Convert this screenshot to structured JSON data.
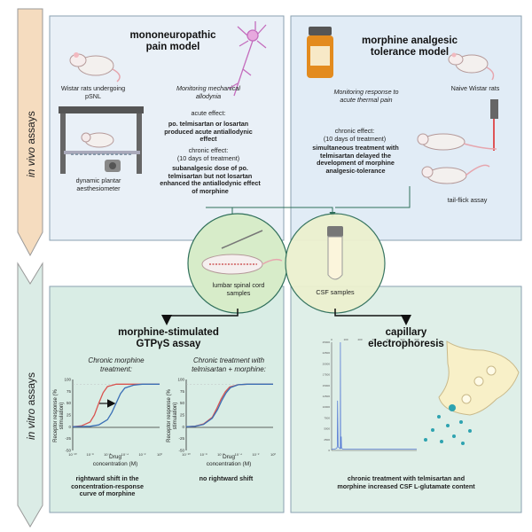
{
  "side": {
    "in_vivo": [
      "in vivo",
      " assays"
    ],
    "in_vitro": [
      "in vitro",
      " assays"
    ]
  },
  "panel_tl": {
    "title": "mononeuropathic\npain model",
    "rats_caption": "Wistar rats undergoing\npSNL",
    "monitoring": "Monitoring mechanical\nallodynia",
    "acute_label": "acute effect:",
    "acute_text": "po. telmisartan or losartan\nproduced acute antiallodynic\neffect",
    "chronic_label": "chronic effect:\n(10 days of treatment)",
    "chronic_text": "subanalgesic dose of po.\ntelmisartan but not losartan\nenhanced the antiallodynic effect\nof morphine",
    "device_caption": "dynamic plantar\naesthesiometer"
  },
  "panel_tr": {
    "title": "morphine analgesic\ntolerance model",
    "rats_caption": "Naive Wistar rats",
    "monitoring": "Monitoring response to\nacute thermal pain",
    "chronic_label": "chronic effect:\n(10 days of treatment)",
    "chronic_text": "simultaneous treatment with\ntelmisartan delayed the\ndevelopment of morphine\nanalgesic-tolerance",
    "assay_caption": "tail-flick assay"
  },
  "samples": {
    "spinal": "lumbar spinal cord\nsamples",
    "csf": "CSF samples"
  },
  "panel_bl": {
    "title": "morphine-stimulated\nGTPγS assay",
    "chart1_title": "Chronic morphine\ntreatment:",
    "chart2_title": "Chronic treatment with\ntelmisartan + morphine:",
    "chart1_result": "rightward shift in the\nconcentration-response\ncurve of morphine",
    "chart2_result": "no rightward shift",
    "ylabel": "Receptor response (%\nstimulation)",
    "xlabel": "Drug\nconcentration (M)"
  },
  "panel_br": {
    "title": "capillary\nelectrophoresis",
    "result": "chronic treatment with telmisartan and\nmorphine increased CSF L-glutamate content"
  },
  "chart_data": [
    {
      "type": "line",
      "title": "Chronic morphine\ntreatment:",
      "xlabel": "Drug\nconcentration (M)",
      "ylabel": "Receptor response (%\nstimulation)",
      "x_ticks": [
        "10⁻¹⁰",
        "10⁻⁸",
        "10⁻⁶",
        "10⁻⁴",
        "10⁻²",
        "10⁰"
      ],
      "y_ticks": [
        "100",
        "75",
        "50",
        "25",
        "0",
        "-25",
        "-50"
      ],
      "ylim": [
        -50,
        100
      ],
      "series": [
        {
          "color": "#d9534f",
          "x": [
            -10,
            -9,
            -8,
            -7.5,
            -7,
            -6.5,
            -6,
            -5,
            -4,
            -3,
            -2,
            0
          ],
          "y": [
            0,
            2,
            10,
            25,
            50,
            72,
            85,
            90,
            90,
            90,
            90,
            90
          ]
        },
        {
          "color": "#3a6fb5",
          "x": [
            -10,
            -8,
            -7,
            -6,
            -5.5,
            -5,
            -4.5,
            -4,
            -3,
            -2,
            0
          ],
          "y": [
            0,
            1,
            4,
            15,
            30,
            50,
            70,
            82,
            88,
            90,
            90
          ]
        }
      ]
    },
    {
      "type": "line",
      "title": "Chronic treatment with\ntelmisartan + morphine:",
      "xlabel": "Drug\nconcentration (M)",
      "ylabel": "Receptor response (%\nstimulation)",
      "x_ticks": [
        "10⁻¹⁰",
        "10⁻⁸",
        "10⁻⁶",
        "10⁻⁴",
        "10⁻²",
        "10⁰"
      ],
      "y_ticks": [
        "100",
        "75",
        "50",
        "25",
        "0",
        "-25",
        "-50"
      ],
      "ylim": [
        -50,
        100
      ],
      "series": [
        {
          "color": "#d9534f",
          "x": [
            -10,
            -9,
            -8,
            -7,
            -6.5,
            -6,
            -5.5,
            -5,
            -4,
            -3,
            -2,
            0
          ],
          "y": [
            0,
            1,
            6,
            20,
            38,
            58,
            74,
            84,
            89,
            90,
            90,
            90
          ]
        },
        {
          "color": "#3a6fb5",
          "x": [
            -10,
            -9,
            -8,
            -7,
            -6.4,
            -5.9,
            -5.4,
            -4.9,
            -4,
            -3,
            -2,
            0
          ],
          "y": [
            0,
            1,
            5,
            18,
            36,
            56,
            72,
            83,
            89,
            90,
            90,
            90
          ]
        }
      ]
    },
    {
      "type": "line",
      "title": "",
      "x_ticks": [
        "0",
        "100",
        "200",
        "300",
        "400",
        "500",
        "600"
      ],
      "y_ticks": [
        "25000",
        "22500",
        "20000",
        "17500",
        "15000",
        "12500",
        "10000",
        "7500",
        "5000",
        "2500",
        "0"
      ],
      "series": [
        {
          "color": "#5b7fd6",
          "x": [
            0,
            20,
            30,
            38,
            40,
            42,
            46,
            60,
            61,
            62,
            64,
            66,
            68,
            70,
            80,
            90,
            100,
            110,
            120,
            140,
            160,
            200,
            300,
            400,
            500,
            600
          ],
          "y": [
            300,
            300,
            400,
            600,
            1000,
            11500,
            800,
            400,
            600,
            25000,
            900,
            400,
            3200,
            500,
            300,
            300,
            300,
            300,
            300,
            300,
            300,
            300,
            300,
            300,
            300,
            300
          ]
        }
      ]
    }
  ]
}
